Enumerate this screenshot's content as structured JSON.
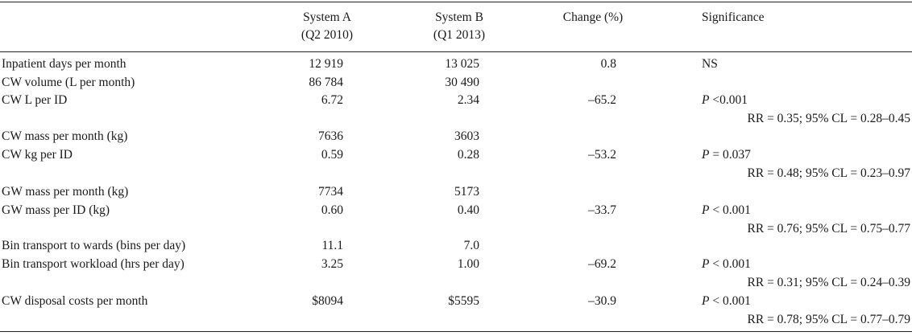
{
  "header": {
    "system_a": "System A",
    "system_a_period": "(Q2 2010)",
    "system_b": "System B",
    "system_b_period": "(Q1 2013)",
    "change": "Change (%)",
    "significance": "Significance"
  },
  "rows": [
    {
      "label": "Inpatient days per month",
      "a": "12 919",
      "b": "13 025",
      "change": "0.8",
      "sig_p": "",
      "sig_text": "NS",
      "sig_ci": ""
    },
    {
      "label": "CW volume (L per month)",
      "a": "86 784",
      "b": "30 490",
      "change": "",
      "sig_p": "",
      "sig_text": "",
      "sig_ci": ""
    },
    {
      "label": "CW L per ID",
      "a": "6.72",
      "b": "2.34",
      "change": "–65.2",
      "sig_p": "P",
      "sig_text": " <0.001",
      "sig_ci": "RR = 0.35; 95% CL = 0.28–0.45"
    },
    {
      "label": "CW mass per month (kg)",
      "a": "7636",
      "b": "3603",
      "change": "",
      "sig_p": "",
      "sig_text": "",
      "sig_ci": ""
    },
    {
      "label": "CW kg per ID",
      "a": "0.59",
      "b": "0.28",
      "change": "–53.2",
      "sig_p": "P",
      "sig_text": " = 0.037",
      "sig_ci": "RR = 0.48; 95% CL = 0.23–0.97"
    },
    {
      "label": "GW mass per month (kg)",
      "a": "7734",
      "b": "5173",
      "change": "",
      "sig_p": "",
      "sig_text": "",
      "sig_ci": ""
    },
    {
      "label": "GW mass per ID (kg)",
      "a": "0.60",
      "b": "0.40",
      "change": "–33.7",
      "sig_p": "P",
      "sig_text": " < 0.001",
      "sig_ci": "RR = 0.76; 95% CL = 0.75–0.77"
    },
    {
      "label": "Bin transport to wards (bins per day)",
      "a": "11.1",
      "b": "7.0",
      "change": "",
      "sig_p": "",
      "sig_text": "",
      "sig_ci": ""
    },
    {
      "label": "Bin transport workload (hrs per day)",
      "a": "3.25",
      "b": "1.00",
      "change": "–69.2",
      "sig_p": "P",
      "sig_text": " < 0.001",
      "sig_ci": "RR = 0.31; 95% CL = 0.24–0.39"
    },
    {
      "label": "CW disposal costs per month",
      "a": "$8094",
      "b": "$5595",
      "change": "–30.9",
      "sig_p": "P",
      "sig_text": " < 0.001",
      "sig_ci": "RR = 0.78; 95% CL = 0.77–0.79"
    }
  ]
}
